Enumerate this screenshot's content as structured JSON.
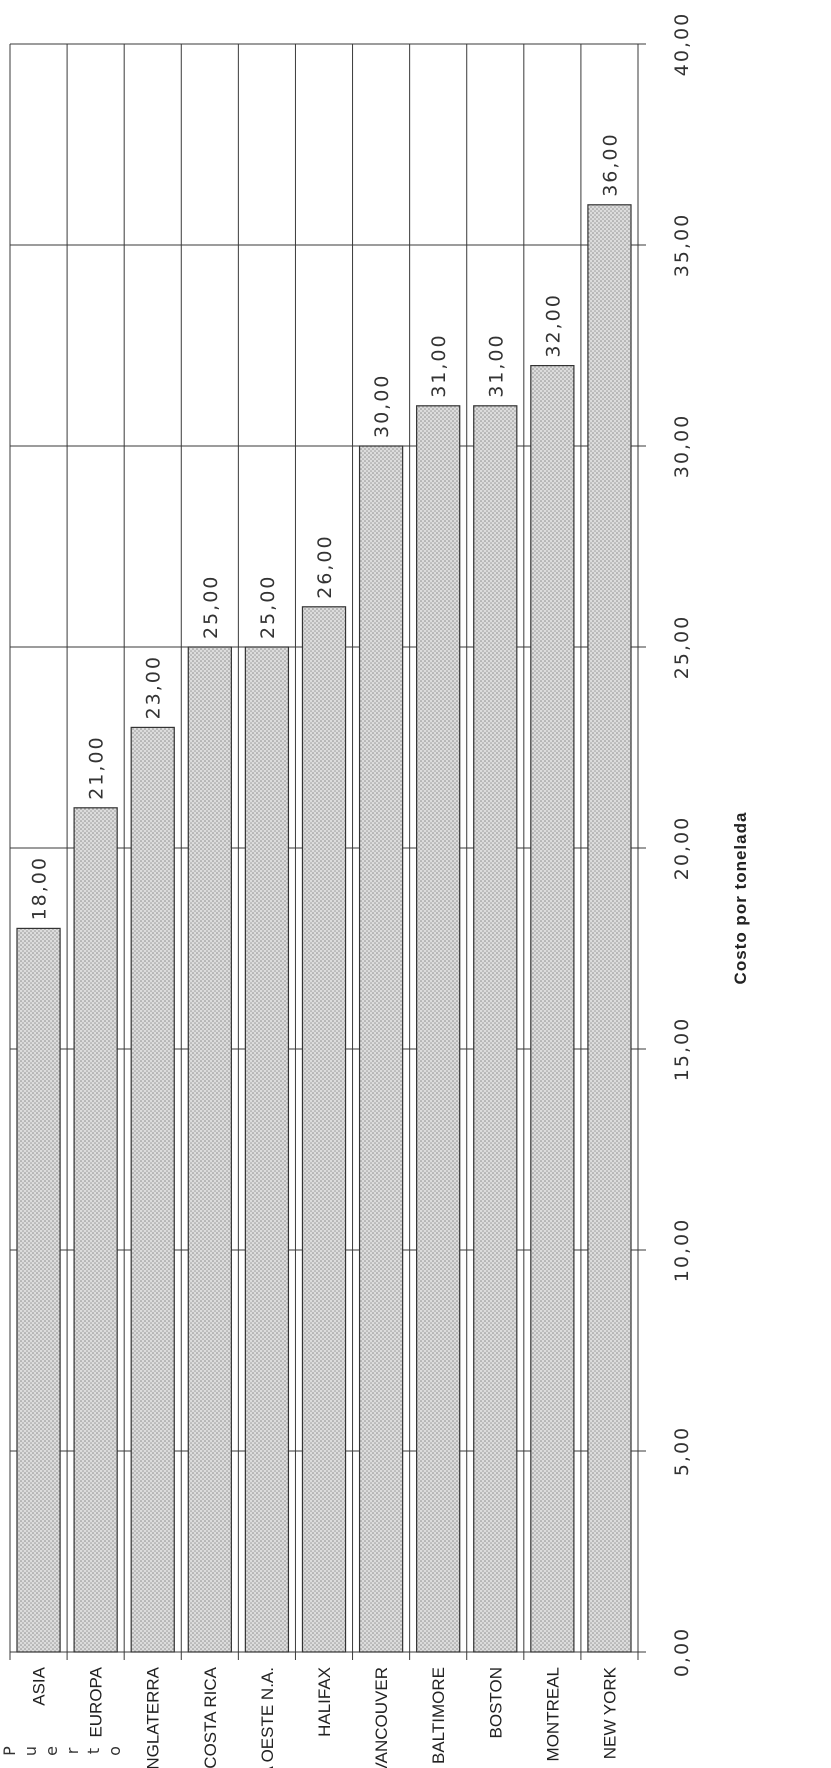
{
  "chart_data": {
    "type": "bar",
    "orientation": "horizontal",
    "categories": [
      "ASIA",
      "EUROPA",
      "INGLATERRA",
      "COSTA RICA",
      "COSTA OESTE N.A.",
      "HALIFAX",
      "VANCOUVER",
      "BALTIMORE",
      "BOSTON",
      "MONTREAL",
      "NEW YORK"
    ],
    "values": [
      18,
      21,
      23,
      25,
      25,
      26,
      30,
      31,
      31,
      32,
      36
    ],
    "value_labels": [
      "18,00",
      "21,00",
      "23,00",
      "25,00",
      "25,00",
      "26,00",
      "30,00",
      "31,00",
      "31,00",
      "32,00",
      "36,00"
    ],
    "xlabel": "Costo por tonelada",
    "ylabel": "Puerto",
    "xlim": [
      0,
      40
    ],
    "ticks": [
      {
        "value": 0,
        "label": "0,00"
      },
      {
        "value": 5,
        "label": "5,00"
      },
      {
        "value": 10,
        "label": "10,00"
      },
      {
        "value": 15,
        "label": "15,00"
      },
      {
        "value": 20,
        "label": "20,00"
      },
      {
        "value": 25,
        "label": "25,00"
      },
      {
        "value": 30,
        "label": "30,00"
      },
      {
        "value": 35,
        "label": "35,00"
      },
      {
        "value": 40,
        "label": "40,00"
      }
    ],
    "grid": true,
    "bar_fill": "stippled light gray",
    "colors": {
      "bar": "#d4d4d4",
      "bar_dot": "#8c8c8c",
      "grid": "#3a3a3a",
      "text": "#222222"
    }
  }
}
